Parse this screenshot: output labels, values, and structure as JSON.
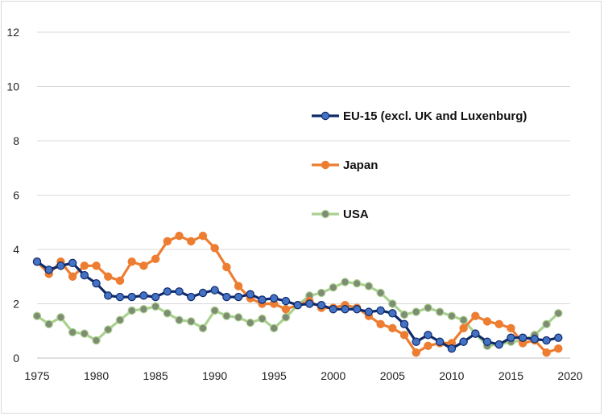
{
  "chart_data": {
    "type": "line",
    "title": "",
    "xlabel": "",
    "ylabel": "",
    "xlim": [
      1975,
      2020
    ],
    "ylim": [
      0,
      12
    ],
    "xticks": [
      "1975",
      "1980",
      "1985",
      "1990",
      "1995",
      "2000",
      "2005",
      "2010",
      "2015",
      "2020"
    ],
    "yticks": [
      "0",
      "2",
      "4",
      "6",
      "8",
      "10",
      "12"
    ],
    "grid": "horizontal",
    "legend": "right",
    "x": [
      1975,
      1976,
      1977,
      1978,
      1979,
      1980,
      1981,
      1982,
      1983,
      1984,
      1985,
      1986,
      1987,
      1988,
      1989,
      1990,
      1991,
      1992,
      1993,
      1994,
      1995,
      1996,
      1997,
      1998,
      1999,
      2000,
      2001,
      2002,
      2003,
      2004,
      2005,
      2006,
      2007,
      2008,
      2009,
      2010,
      2011,
      2012,
      2013,
      2014,
      2015,
      2016,
      2017,
      2018,
      2019
    ],
    "series": [
      {
        "name": "EU-15 (excl. UK and Luxenburg)",
        "line_color": "#0f2a6b",
        "marker_color": "#4472c4",
        "values": [
          3.55,
          3.25,
          3.4,
          3.5,
          3.05,
          2.75,
          2.3,
          2.25,
          2.25,
          2.3,
          2.25,
          2.45,
          2.45,
          2.25,
          2.4,
          2.5,
          2.25,
          2.25,
          2.35,
          2.15,
          2.2,
          2.1,
          1.95,
          2.0,
          1.95,
          1.8,
          1.8,
          1.8,
          1.7,
          1.75,
          1.65,
          1.25,
          0.6,
          0.85,
          0.6,
          0.35,
          0.6,
          0.9,
          0.6,
          0.5,
          0.75,
          0.75,
          0.7,
          0.65,
          0.75
        ]
      },
      {
        "name": "Japan",
        "line_color": "#ed7d31",
        "marker_color": "#ed7d31",
        "values": [
          3.55,
          3.1,
          3.55,
          3.0,
          3.4,
          3.4,
          3.0,
          2.85,
          3.55,
          3.4,
          3.65,
          4.3,
          4.5,
          4.3,
          4.5,
          4.05,
          3.35,
          2.65,
          2.2,
          2.0,
          2.0,
          1.8,
          1.95,
          2.1,
          1.85,
          1.85,
          1.95,
          1.85,
          1.55,
          1.25,
          1.1,
          0.85,
          0.2,
          0.45,
          0.55,
          0.55,
          1.1,
          1.55,
          1.35,
          1.25,
          1.1,
          0.55,
          0.65,
          0.2,
          0.35
        ]
      },
      {
        "name": "USA",
        "line_color": "#a9d18e",
        "marker_color": "#7f8c74",
        "values": [
          1.55,
          1.25,
          1.5,
          0.95,
          0.9,
          0.65,
          1.05,
          1.4,
          1.75,
          1.8,
          1.9,
          1.65,
          1.4,
          1.35,
          1.1,
          1.75,
          1.55,
          1.5,
          1.3,
          1.45,
          1.1,
          1.5,
          1.95,
          2.3,
          2.4,
          2.6,
          2.8,
          2.75,
          2.65,
          2.4,
          2.0,
          1.6,
          1.7,
          1.85,
          1.7,
          1.55,
          1.4,
          0.9,
          0.45,
          0.5,
          0.6,
          0.65,
          0.85,
          1.25,
          1.65
        ]
      }
    ]
  }
}
